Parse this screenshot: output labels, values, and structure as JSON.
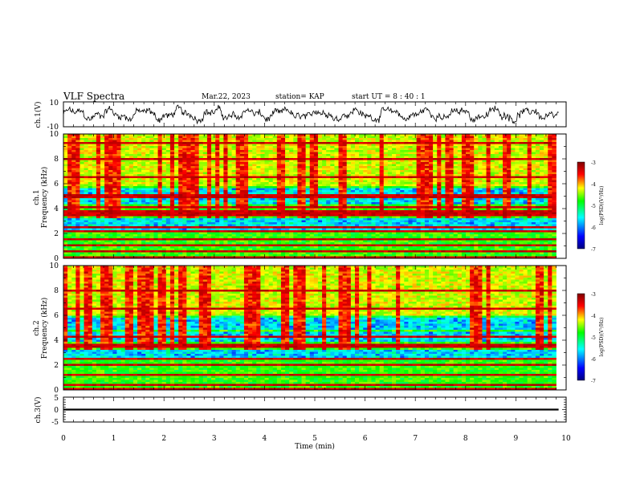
{
  "header": {
    "title": "VLF Spectra",
    "date": "Mar.22, 2023",
    "station": "station= KAP",
    "start_time": "start  UT =   8  : 40 : 1"
  },
  "chart_data": [
    {
      "type": "line",
      "ylabel": "ch.1(V)",
      "ylim": [
        -10,
        10
      ],
      "yticks": [
        "10",
        "-10"
      ],
      "xlim": [
        0,
        10
      ]
    },
    {
      "type": "heatmap",
      "ylabel_top": "ch.1",
      "ylabel": "Frequency  (kHz)",
      "ylim": [
        0,
        10
      ],
      "yticks": [
        "10",
        "8",
        "6",
        "4",
        "2",
        "0"
      ],
      "xlim": [
        0,
        10
      ],
      "data_end_min": 9.8,
      "colorbar": {
        "label": "log(PSD)(V²/Hz)",
        "range": [
          -7,
          -3
        ],
        "ticks": [
          "-3",
          "-4",
          "-5",
          "-6",
          "-7"
        ]
      },
      "dark_bands_khz": [
        0.1,
        0.5,
        1.0,
        1.5,
        2.2,
        2.5,
        3.55,
        3.75,
        4.1,
        5.0,
        6.5,
        8.0,
        9.3
      ],
      "low_power_bands_khz": [
        [
          2.3,
          3.3
        ],
        [
          4.3,
          5.6
        ]
      ]
    },
    {
      "type": "heatmap",
      "ylabel_top": "ch.2",
      "ylabel": "Frequency  (kHz)",
      "ylim": [
        0,
        10
      ],
      "yticks": [
        "10",
        "8",
        "6",
        "4",
        "2",
        "0"
      ],
      "xlim": [
        0,
        10
      ],
      "data_end_min": 9.8,
      "colorbar": {
        "label": "log(PSD)(V²/Hz)",
        "range": [
          -7,
          -3
        ],
        "ticks": [
          "-3",
          "-4",
          "-5",
          "-6",
          "-7"
        ]
      },
      "dark_bands_khz": [
        0.1,
        0.4,
        1.2,
        2.0,
        2.5,
        3.4,
        3.7,
        4.3,
        6.5,
        8.0
      ],
      "low_power_bands_khz": [
        [
          2.4,
          3.3
        ],
        [
          3.8,
          4.6
        ],
        [
          4.8,
          6.0
        ]
      ]
    },
    {
      "type": "line",
      "ylabel": "ch.3(V)",
      "ylim": [
        -5,
        5
      ],
      "yticks": [
        "5",
        "0",
        "-5"
      ],
      "xlim": [
        0,
        10
      ],
      "band_v": [
        -0.35,
        0.35
      ]
    }
  ],
  "xaxis": {
    "label": "Time  (min)",
    "ticks": [
      "0",
      "1",
      "2",
      "3",
      "4",
      "5",
      "6",
      "7",
      "8",
      "9",
      "10"
    ]
  },
  "colors": {
    "trace": "#000000",
    "colormap": [
      "#00007f",
      "#0000ff",
      "#00ffff",
      "#00ff00",
      "#ffff00",
      "#ff0000",
      "#7f0000"
    ]
  }
}
